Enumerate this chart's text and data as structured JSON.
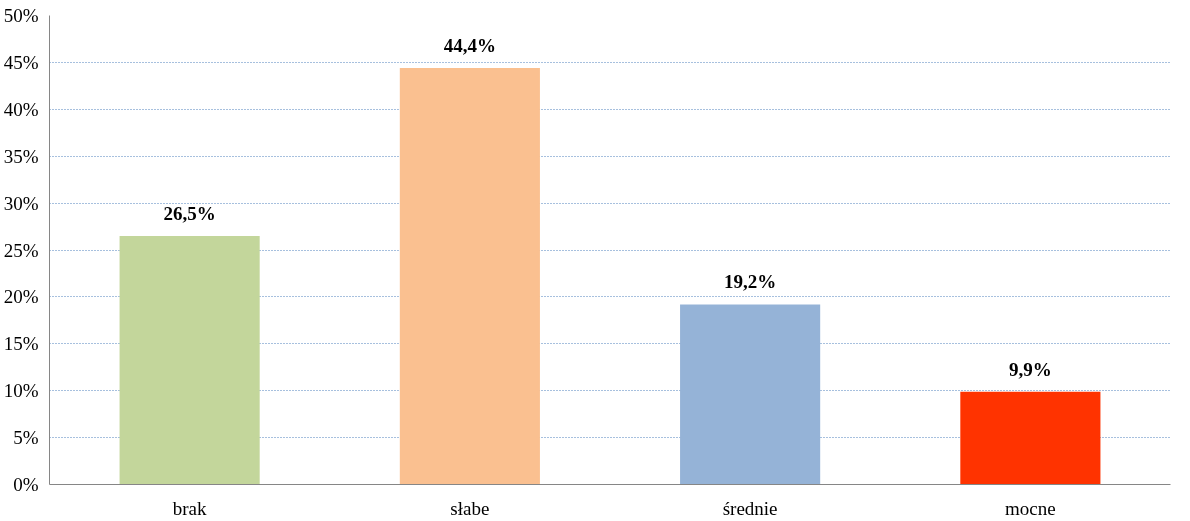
{
  "chart_data": {
    "type": "bar",
    "categories": [
      "brak",
      "słabe",
      "średnie",
      "mocne"
    ],
    "values": [
      26.5,
      44.4,
      19.2,
      9.9
    ],
    "colors": [
      "#c3d69b",
      "#fac090",
      "#95b3d7",
      "#ff3300"
    ],
    "value_labels": [
      "26,5%",
      "44,4%",
      "19,2%",
      "9,9%"
    ],
    "ylim": [
      0,
      50
    ],
    "yticks": [
      {
        "value": 0,
        "label": "0%"
      },
      {
        "value": 5,
        "label": "5%"
      },
      {
        "value": 10,
        "label": "10%"
      },
      {
        "value": 15,
        "label": "15%"
      },
      {
        "value": 20,
        "label": "20%"
      },
      {
        "value": 25,
        "label": "25%"
      },
      {
        "value": 30,
        "label": "30%"
      },
      {
        "value": 35,
        "label": "35%"
      },
      {
        "value": 40,
        "label": "40%"
      },
      {
        "value": 45,
        "label": "45%"
      },
      {
        "value": 50,
        "label": "50%"
      }
    ],
    "grid": "y"
  }
}
